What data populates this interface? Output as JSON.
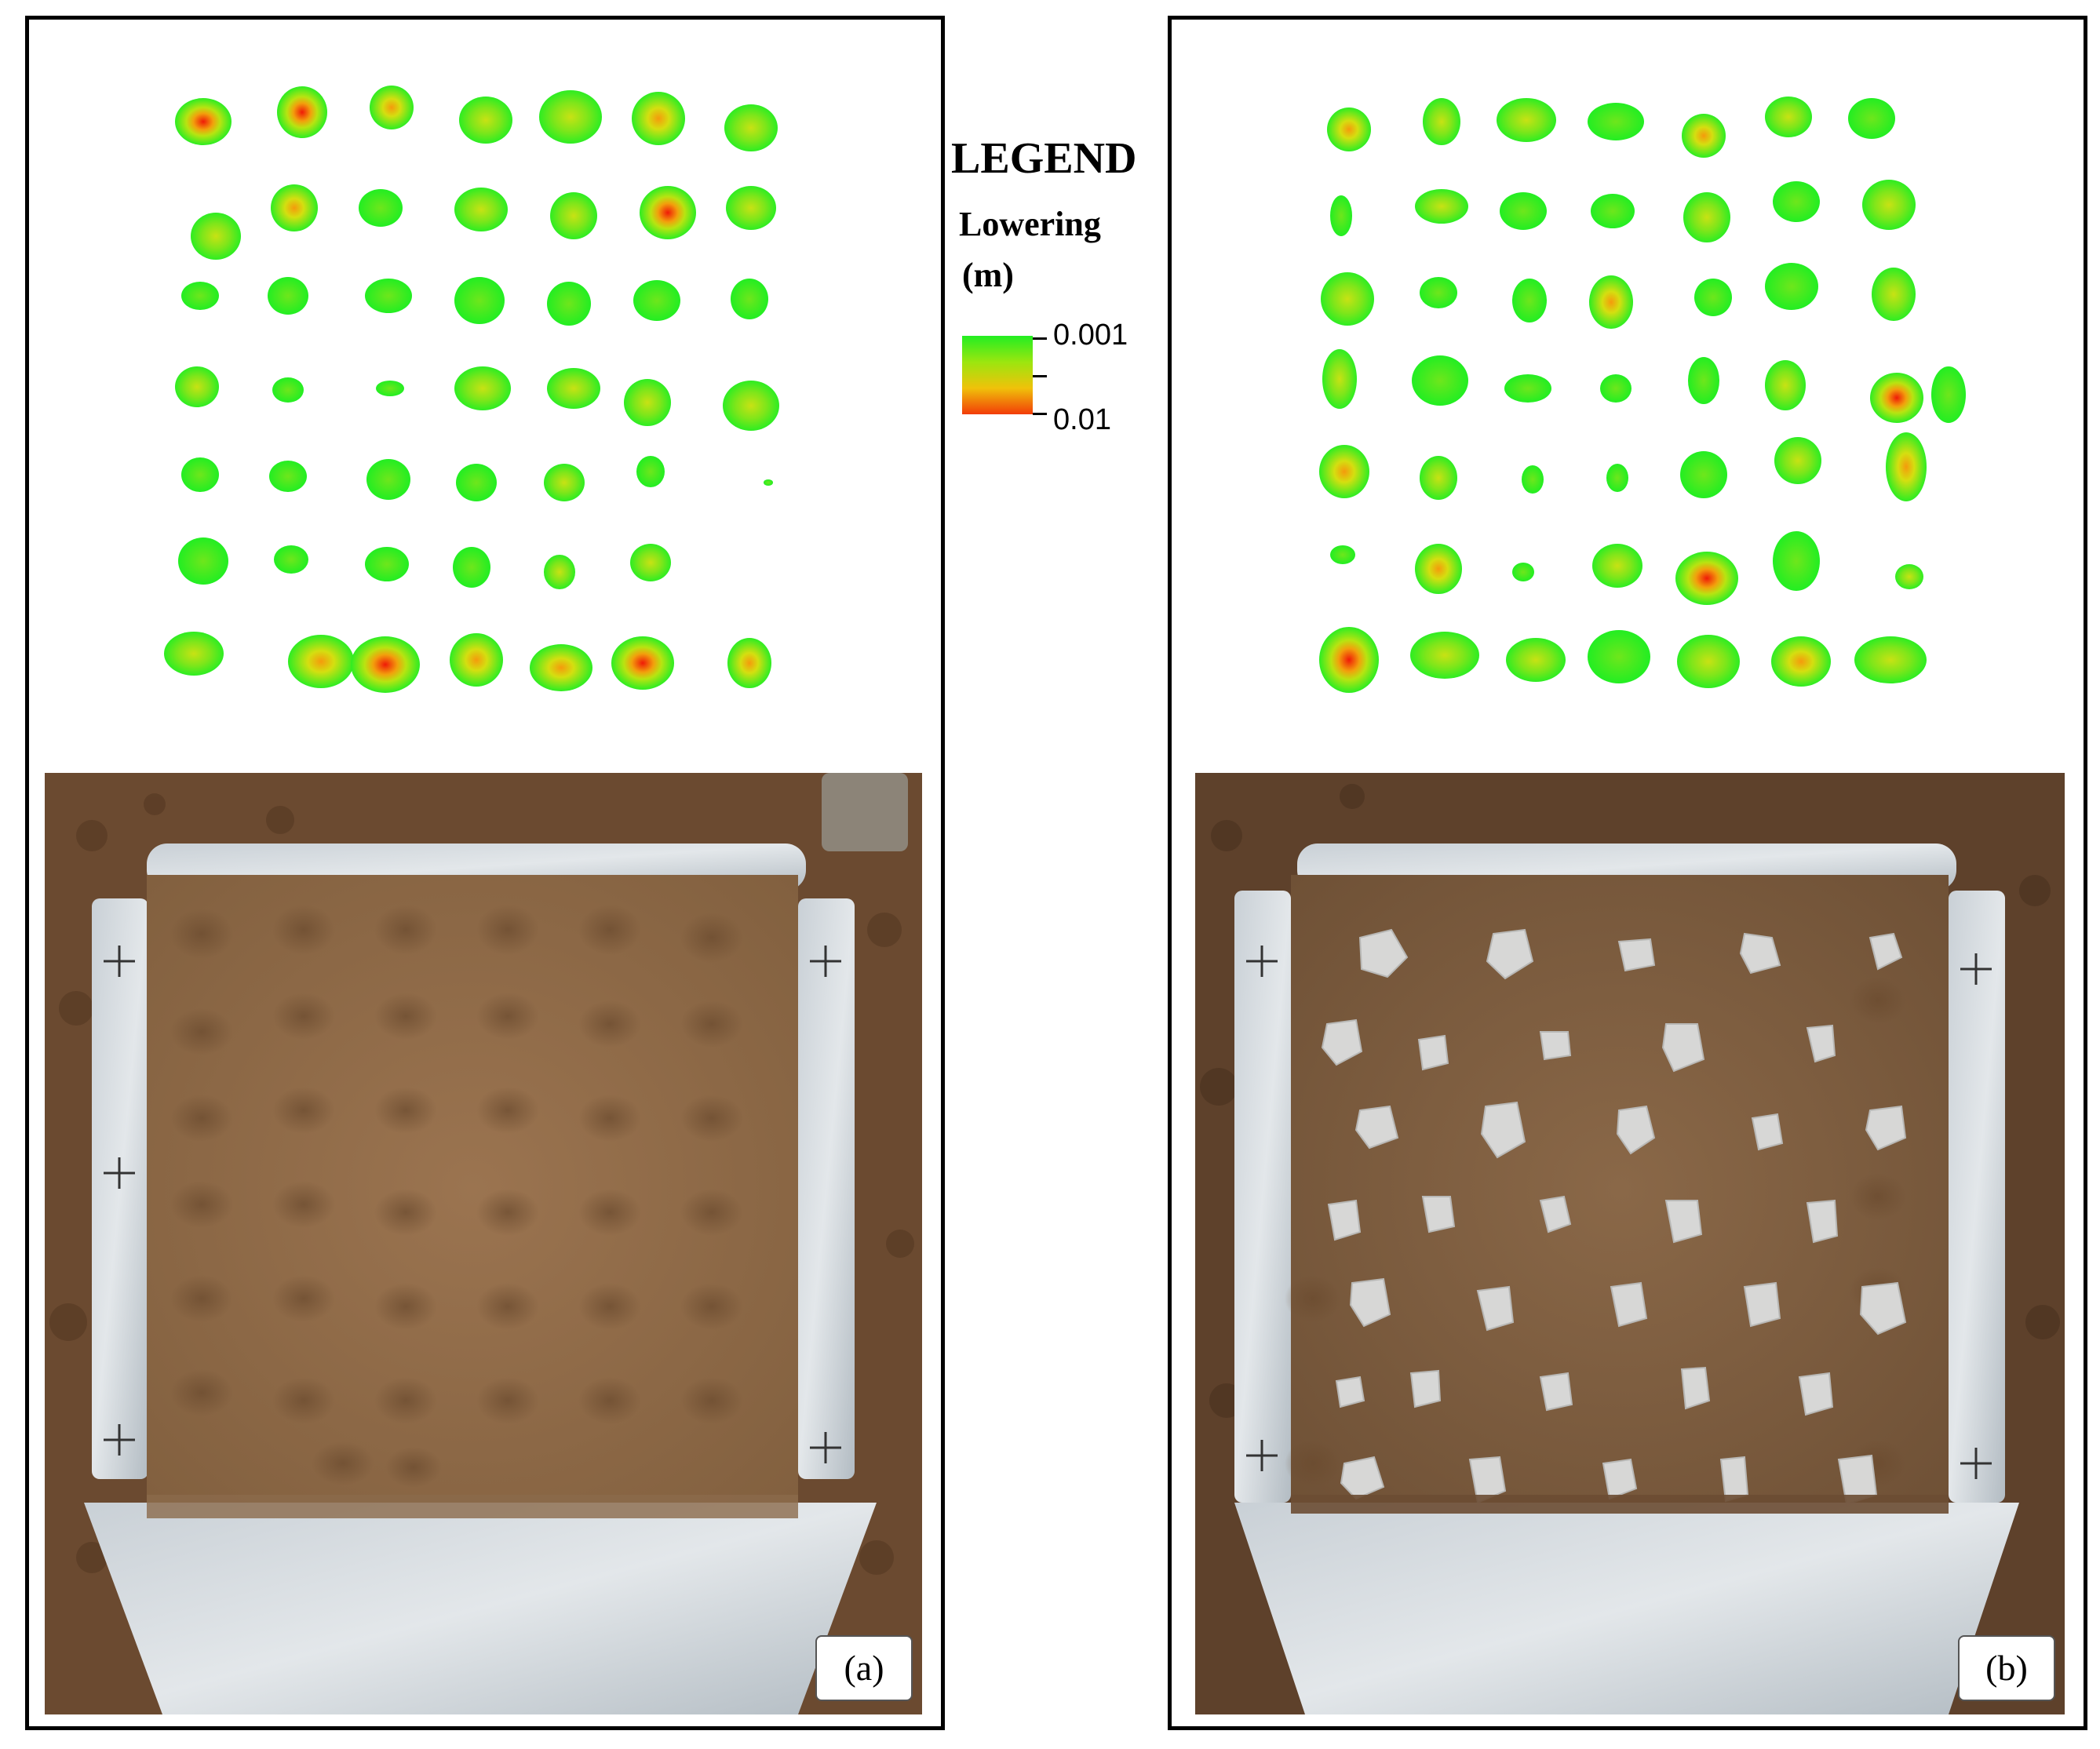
{
  "legend": {
    "title": "LEGEND",
    "variable_label": "Lowering",
    "unit_label": "(m)",
    "scale_top": "0.001",
    "scale_bottom": "0.01",
    "colors": [
      "#22ee22",
      "#9be60f",
      "#f0c20a",
      "#f23c08"
    ]
  },
  "panels": [
    {
      "label": "(a)"
    },
    {
      "label": "(b)"
    }
  ]
}
